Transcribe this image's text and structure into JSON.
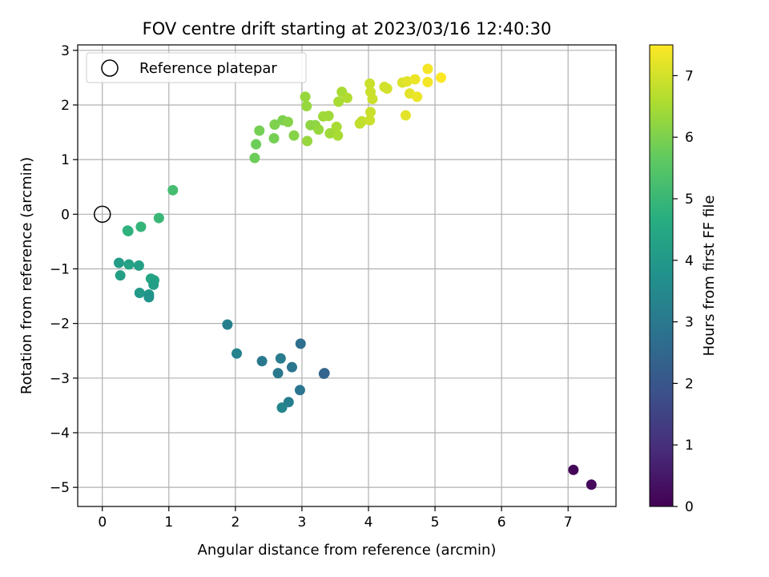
{
  "chart_data": {
    "type": "scatter",
    "title": "FOV centre drift starting at 2023/03/16 12:40:30",
    "xlabel": "Angular distance from reference (arcmin)",
    "ylabel": "Rotation from reference (arcmin)",
    "xlim": [
      -0.37,
      7.72
    ],
    "ylim": [
      -5.35,
      3.1
    ],
    "x_ticks": [
      0,
      1,
      2,
      3,
      4,
      5,
      6,
      7
    ],
    "y_ticks": [
      -5,
      -4,
      -3,
      -2,
      -1,
      0,
      1,
      2,
      3
    ],
    "x_tick_labels": [
      "0",
      "1",
      "2",
      "3",
      "4",
      "5",
      "6",
      "7"
    ],
    "y_tick_labels": [
      "−5",
      "−4",
      "−3",
      "−2",
      "−1",
      "0",
      "1",
      "2",
      "3"
    ],
    "grid": true,
    "legend": {
      "position": "top-left",
      "entries": [
        "Reference platepar"
      ]
    },
    "reference_point": {
      "x": 0,
      "y": 0
    },
    "colorbar": {
      "label": "Hours from first FF file",
      "range": [
        0,
        7.5
      ],
      "ticks": [
        0,
        1,
        2,
        3,
        4,
        5,
        6,
        7
      ],
      "tick_labels": [
        "0",
        "1",
        "2",
        "3",
        "4",
        "5",
        "6",
        "7"
      ],
      "colormap": "viridis"
    },
    "points": [
      {
        "x": 7.08,
        "y": -4.68,
        "c": 0.1
      },
      {
        "x": 7.35,
        "y": -4.95,
        "c": 0.2
      },
      {
        "x": 1.88,
        "y": -2.02,
        "c": 3.2
      },
      {
        "x": 2.02,
        "y": -2.55,
        "c": 3.3
      },
      {
        "x": 2.4,
        "y": -2.69,
        "c": 3.0
      },
      {
        "x": 2.68,
        "y": -2.64,
        "c": 3.1
      },
      {
        "x": 2.64,
        "y": -2.91,
        "c": 3.0
      },
      {
        "x": 2.85,
        "y": -2.8,
        "c": 2.9
      },
      {
        "x": 2.98,
        "y": -2.37,
        "c": 2.7
      },
      {
        "x": 3.33,
        "y": -2.92,
        "c": 2.5
      },
      {
        "x": 3.34,
        "y": -2.91,
        "c": 2.4
      },
      {
        "x": 2.97,
        "y": -3.22,
        "c": 2.9
      },
      {
        "x": 2.8,
        "y": -3.44,
        "c": 3.2
      },
      {
        "x": 2.7,
        "y": -3.54,
        "c": 3.4
      },
      {
        "x": 0.38,
        "y": -0.3,
        "c": 4.7
      },
      {
        "x": 0.39,
        "y": -0.31,
        "c": 4.8
      },
      {
        "x": 0.58,
        "y": -0.23,
        "c": 4.9
      },
      {
        "x": 0.85,
        "y": -0.07,
        "c": 5.0
      },
      {
        "x": 1.06,
        "y": 0.44,
        "c": 5.2
      },
      {
        "x": 0.25,
        "y": -0.89,
        "c": 4.1
      },
      {
        "x": 0.27,
        "y": -1.12,
        "c": 4.2
      },
      {
        "x": 0.4,
        "y": -0.92,
        "c": 4.3
      },
      {
        "x": 0.55,
        "y": -0.94,
        "c": 4.2
      },
      {
        "x": 0.56,
        "y": -1.44,
        "c": 4.0
      },
      {
        "x": 0.7,
        "y": -1.47,
        "c": 3.9
      },
      {
        "x": 0.7,
        "y": -1.52,
        "c": 3.8
      },
      {
        "x": 0.73,
        "y": -1.18,
        "c": 4.4
      },
      {
        "x": 0.78,
        "y": -1.21,
        "c": 4.3
      },
      {
        "x": 0.77,
        "y": -1.29,
        "c": 4.2
      },
      {
        "x": 2.29,
        "y": 1.03,
        "c": 5.8
      },
      {
        "x": 2.31,
        "y": 1.28,
        "c": 5.8
      },
      {
        "x": 2.36,
        "y": 1.53,
        "c": 5.9
      },
      {
        "x": 2.58,
        "y": 1.39,
        "c": 5.9
      },
      {
        "x": 2.59,
        "y": 1.64,
        "c": 6.0
      },
      {
        "x": 2.71,
        "y": 1.72,
        "c": 6.0
      },
      {
        "x": 2.79,
        "y": 1.69,
        "c": 6.1
      },
      {
        "x": 2.88,
        "y": 1.44,
        "c": 6.1
      },
      {
        "x": 3.08,
        "y": 1.34,
        "c": 6.3
      },
      {
        "x": 3.05,
        "y": 2.15,
        "c": 6.3
      },
      {
        "x": 3.07,
        "y": 1.98,
        "c": 6.3
      },
      {
        "x": 3.13,
        "y": 1.63,
        "c": 6.2
      },
      {
        "x": 3.2,
        "y": 1.63,
        "c": 6.2
      },
      {
        "x": 3.25,
        "y": 1.55,
        "c": 6.3
      },
      {
        "x": 3.32,
        "y": 1.79,
        "c": 6.4
      },
      {
        "x": 3.4,
        "y": 1.8,
        "c": 6.4
      },
      {
        "x": 3.42,
        "y": 1.48,
        "c": 6.4
      },
      {
        "x": 3.52,
        "y": 1.6,
        "c": 6.5
      },
      {
        "x": 3.54,
        "y": 1.44,
        "c": 6.5
      },
      {
        "x": 3.55,
        "y": 2.06,
        "c": 6.5
      },
      {
        "x": 3.6,
        "y": 2.24,
        "c": 6.5
      },
      {
        "x": 3.68,
        "y": 2.13,
        "c": 6.6
      },
      {
        "x": 3.87,
        "y": 1.66,
        "c": 6.8
      },
      {
        "x": 3.9,
        "y": 1.7,
        "c": 6.8
      },
      {
        "x": 4.02,
        "y": 1.72,
        "c": 6.9
      },
      {
        "x": 4.03,
        "y": 1.87,
        "c": 6.9
      },
      {
        "x": 4.02,
        "y": 2.39,
        "c": 6.9
      },
      {
        "x": 4.03,
        "y": 2.24,
        "c": 6.9
      },
      {
        "x": 4.06,
        "y": 2.11,
        "c": 6.9
      },
      {
        "x": 4.24,
        "y": 2.33,
        "c": 7.0
      },
      {
        "x": 4.28,
        "y": 2.3,
        "c": 7.0
      },
      {
        "x": 4.51,
        "y": 2.41,
        "c": 7.1
      },
      {
        "x": 4.58,
        "y": 2.43,
        "c": 7.2
      },
      {
        "x": 4.56,
        "y": 1.81,
        "c": 7.2
      },
      {
        "x": 4.62,
        "y": 2.21,
        "c": 7.2
      },
      {
        "x": 4.7,
        "y": 2.47,
        "c": 7.3
      },
      {
        "x": 4.73,
        "y": 2.15,
        "c": 7.3
      },
      {
        "x": 4.89,
        "y": 2.66,
        "c": 7.4
      },
      {
        "x": 4.89,
        "y": 2.42,
        "c": 7.4
      },
      {
        "x": 5.09,
        "y": 2.5,
        "c": 7.5
      }
    ]
  }
}
